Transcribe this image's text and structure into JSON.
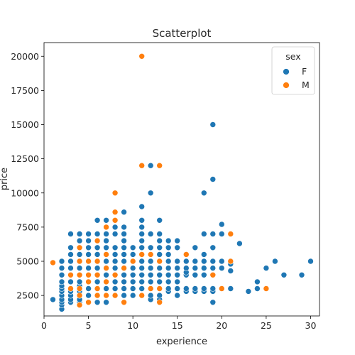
{
  "chart_data": {
    "type": "scatter",
    "title": "Scatterplot",
    "xlabel": "experience",
    "ylabel": "price",
    "xlim": [
      0,
      31
    ],
    "ylim": [
      1000,
      21000
    ],
    "xticks": [
      0,
      5,
      10,
      15,
      20,
      25,
      30
    ],
    "yticks": [
      2500,
      5000,
      7500,
      10000,
      12500,
      15000,
      17500,
      20000
    ],
    "grid": false,
    "legend": {
      "title": "sex",
      "placement": "top-right",
      "entries": [
        {
          "label": "F",
          "color": "#1f77b4"
        },
        {
          "label": "M",
          "color": "#ff7f0e"
        }
      ]
    },
    "series": [
      {
        "name": "F",
        "color": "#1f77b4",
        "points": [
          [
            1,
            2200
          ],
          [
            2,
            1500
          ],
          [
            2,
            1800
          ],
          [
            2,
            2000
          ],
          [
            2,
            2200
          ],
          [
            2,
            2500
          ],
          [
            2,
            2800
          ],
          [
            2,
            3000
          ],
          [
            2,
            3200
          ],
          [
            2,
            3500
          ],
          [
            2,
            4000
          ],
          [
            2,
            4500
          ],
          [
            2,
            5000
          ],
          [
            3,
            2000
          ],
          [
            3,
            2200
          ],
          [
            3,
            2500
          ],
          [
            3,
            2800
          ],
          [
            3,
            3000
          ],
          [
            3,
            3500
          ],
          [
            3,
            4000
          ],
          [
            3,
            4500
          ],
          [
            3,
            5000
          ],
          [
            3,
            5500
          ],
          [
            3,
            6000
          ],
          [
            3,
            7000
          ],
          [
            4,
            2000
          ],
          [
            4,
            2200
          ],
          [
            4,
            2500
          ],
          [
            4,
            2800
          ],
          [
            4,
            3000
          ],
          [
            4,
            3200
          ],
          [
            4,
            3500
          ],
          [
            4,
            4000
          ],
          [
            4,
            4500
          ],
          [
            4,
            5000
          ],
          [
            4,
            5500
          ],
          [
            4,
            6000
          ],
          [
            4,
            6500
          ],
          [
            4,
            7000
          ],
          [
            5,
            2000
          ],
          [
            5,
            2500
          ],
          [
            5,
            3000
          ],
          [
            5,
            3500
          ],
          [
            5,
            4000
          ],
          [
            5,
            4500
          ],
          [
            5,
            5000
          ],
          [
            5,
            5500
          ],
          [
            5,
            6000
          ],
          [
            5,
            6500
          ],
          [
            5,
            7000
          ],
          [
            6,
            2000
          ],
          [
            6,
            2500
          ],
          [
            6,
            3000
          ],
          [
            6,
            3500
          ],
          [
            6,
            4000
          ],
          [
            6,
            4500
          ],
          [
            6,
            5000
          ],
          [
            6,
            5500
          ],
          [
            6,
            6000
          ],
          [
            6,
            7000
          ],
          [
            6,
            8000
          ],
          [
            7,
            2000
          ],
          [
            7,
            2500
          ],
          [
            7,
            3000
          ],
          [
            7,
            3500
          ],
          [
            7,
            4000
          ],
          [
            7,
            4500
          ],
          [
            7,
            5000
          ],
          [
            7,
            5500
          ],
          [
            7,
            6000
          ],
          [
            7,
            6500
          ],
          [
            7,
            7000
          ],
          [
            7,
            8000
          ],
          [
            8,
            2500
          ],
          [
            8,
            3000
          ],
          [
            8,
            3500
          ],
          [
            8,
            4000
          ],
          [
            8,
            4500
          ],
          [
            8,
            5000
          ],
          [
            8,
            5500
          ],
          [
            8,
            6000
          ],
          [
            8,
            7000
          ],
          [
            8,
            7500
          ],
          [
            9,
            2500
          ],
          [
            9,
            3000
          ],
          [
            9,
            3500
          ],
          [
            9,
            4000
          ],
          [
            9,
            4500
          ],
          [
            9,
            5000
          ],
          [
            9,
            5500
          ],
          [
            9,
            6000
          ],
          [
            9,
            6500
          ],
          [
            9,
            7000
          ],
          [
            9,
            7500
          ],
          [
            9,
            8600
          ],
          [
            10,
            2500
          ],
          [
            10,
            3000
          ],
          [
            10,
            3500
          ],
          [
            10,
            4000
          ],
          [
            10,
            4500
          ],
          [
            10,
            5000
          ],
          [
            10,
            5500
          ],
          [
            10,
            6000
          ],
          [
            11,
            2500
          ],
          [
            11,
            3000
          ],
          [
            11,
            3500
          ],
          [
            11,
            4000
          ],
          [
            11,
            4500
          ],
          [
            11,
            5000
          ],
          [
            11,
            5500
          ],
          [
            11,
            6000
          ],
          [
            11,
            6500
          ],
          [
            11,
            7000
          ],
          [
            11,
            7500
          ],
          [
            11,
            8000
          ],
          [
            11,
            9000
          ],
          [
            12,
            2200
          ],
          [
            12,
            2500
          ],
          [
            12,
            3000
          ],
          [
            12,
            3500
          ],
          [
            12,
            4000
          ],
          [
            12,
            4500
          ],
          [
            12,
            5000
          ],
          [
            12,
            6000
          ],
          [
            12,
            7000
          ],
          [
            12,
            10000
          ],
          [
            12,
            12000
          ],
          [
            13,
            2200
          ],
          [
            13,
            2500
          ],
          [
            13,
            3000
          ],
          [
            13,
            3500
          ],
          [
            13,
            4000
          ],
          [
            13,
            4500
          ],
          [
            13,
            5000
          ],
          [
            13,
            5500
          ],
          [
            13,
            6000
          ],
          [
            13,
            6500
          ],
          [
            13,
            7000
          ],
          [
            13,
            8000
          ],
          [
            14,
            2800
          ],
          [
            14,
            3000
          ],
          [
            14,
            3500
          ],
          [
            14,
            4000
          ],
          [
            14,
            4500
          ],
          [
            14,
            5000
          ],
          [
            14,
            5500
          ],
          [
            14,
            6000
          ],
          [
            14,
            6500
          ],
          [
            15,
            2500
          ],
          [
            15,
            3000
          ],
          [
            15,
            3500
          ],
          [
            15,
            4000
          ],
          [
            15,
            4500
          ],
          [
            15,
            5000
          ],
          [
            15,
            6000
          ],
          [
            15,
            6500
          ],
          [
            16,
            2800
          ],
          [
            16,
            3000
          ],
          [
            16,
            4000
          ],
          [
            16,
            4200
          ],
          [
            16,
            4500
          ],
          [
            16,
            5000
          ],
          [
            16,
            5500
          ],
          [
            17,
            2800
          ],
          [
            17,
            3000
          ],
          [
            17,
            4000
          ],
          [
            17,
            4500
          ],
          [
            17,
            5000
          ],
          [
            17,
            6000
          ],
          [
            18,
            2800
          ],
          [
            18,
            3000
          ],
          [
            18,
            4000
          ],
          [
            18,
            4500
          ],
          [
            18,
            5000
          ],
          [
            18,
            5500
          ],
          [
            18,
            7000
          ],
          [
            18,
            10000
          ],
          [
            19,
            2000
          ],
          [
            19,
            2800
          ],
          [
            19,
            3000
          ],
          [
            19,
            4000
          ],
          [
            19,
            4500
          ],
          [
            19,
            5000
          ],
          [
            19,
            6000
          ],
          [
            19,
            7000
          ],
          [
            19,
            11000
          ],
          [
            19,
            15000
          ],
          [
            20,
            3000
          ],
          [
            20,
            4500
          ],
          [
            20,
            5000
          ],
          [
            20,
            7000
          ],
          [
            20,
            7700
          ],
          [
            21,
            3000
          ],
          [
            21,
            4300
          ],
          [
            21,
            4800
          ],
          [
            21,
            5000
          ],
          [
            22,
            6300
          ],
          [
            23,
            2800
          ],
          [
            24,
            3000
          ],
          [
            24,
            3500
          ],
          [
            25,
            4500
          ],
          [
            26,
            5000
          ],
          [
            27,
            4000
          ],
          [
            29,
            4000
          ],
          [
            30,
            5000
          ]
        ]
      },
      {
        "name": "M",
        "color": "#ff7f0e",
        "points": [
          [
            1,
            4900
          ],
          [
            3,
            4000
          ],
          [
            3,
            3000
          ],
          [
            4,
            1800
          ],
          [
            4,
            2500
          ],
          [
            4,
            3000
          ],
          [
            4,
            4000
          ],
          [
            4,
            5000
          ],
          [
            4,
            6000
          ],
          [
            5,
            2000
          ],
          [
            5,
            3500
          ],
          [
            5,
            4000
          ],
          [
            5,
            5000
          ],
          [
            6,
            2500
          ],
          [
            6,
            3000
          ],
          [
            6,
            4000
          ],
          [
            6,
            5000
          ],
          [
            6,
            6500
          ],
          [
            7,
            2500
          ],
          [
            7,
            3500
          ],
          [
            7,
            4500
          ],
          [
            7,
            5500
          ],
          [
            7,
            7500
          ],
          [
            8,
            2500
          ],
          [
            8,
            4000
          ],
          [
            8,
            8000
          ],
          [
            8,
            8600
          ],
          [
            8,
            10000
          ],
          [
            9,
            2000
          ],
          [
            9,
            4500
          ],
          [
            10,
            5000
          ],
          [
            11,
            2500
          ],
          [
            11,
            5500
          ],
          [
            11,
            12000
          ],
          [
            11,
            20000
          ],
          [
            12,
            3000
          ],
          [
            12,
            5500
          ],
          [
            13,
            2000
          ],
          [
            13,
            3000
          ],
          [
            13,
            5000
          ],
          [
            13,
            12000
          ],
          [
            16,
            5500
          ],
          [
            19,
            4000
          ],
          [
            20,
            3000
          ],
          [
            21,
            5000
          ],
          [
            21,
            7000
          ],
          [
            25,
            3000
          ]
        ]
      }
    ]
  }
}
